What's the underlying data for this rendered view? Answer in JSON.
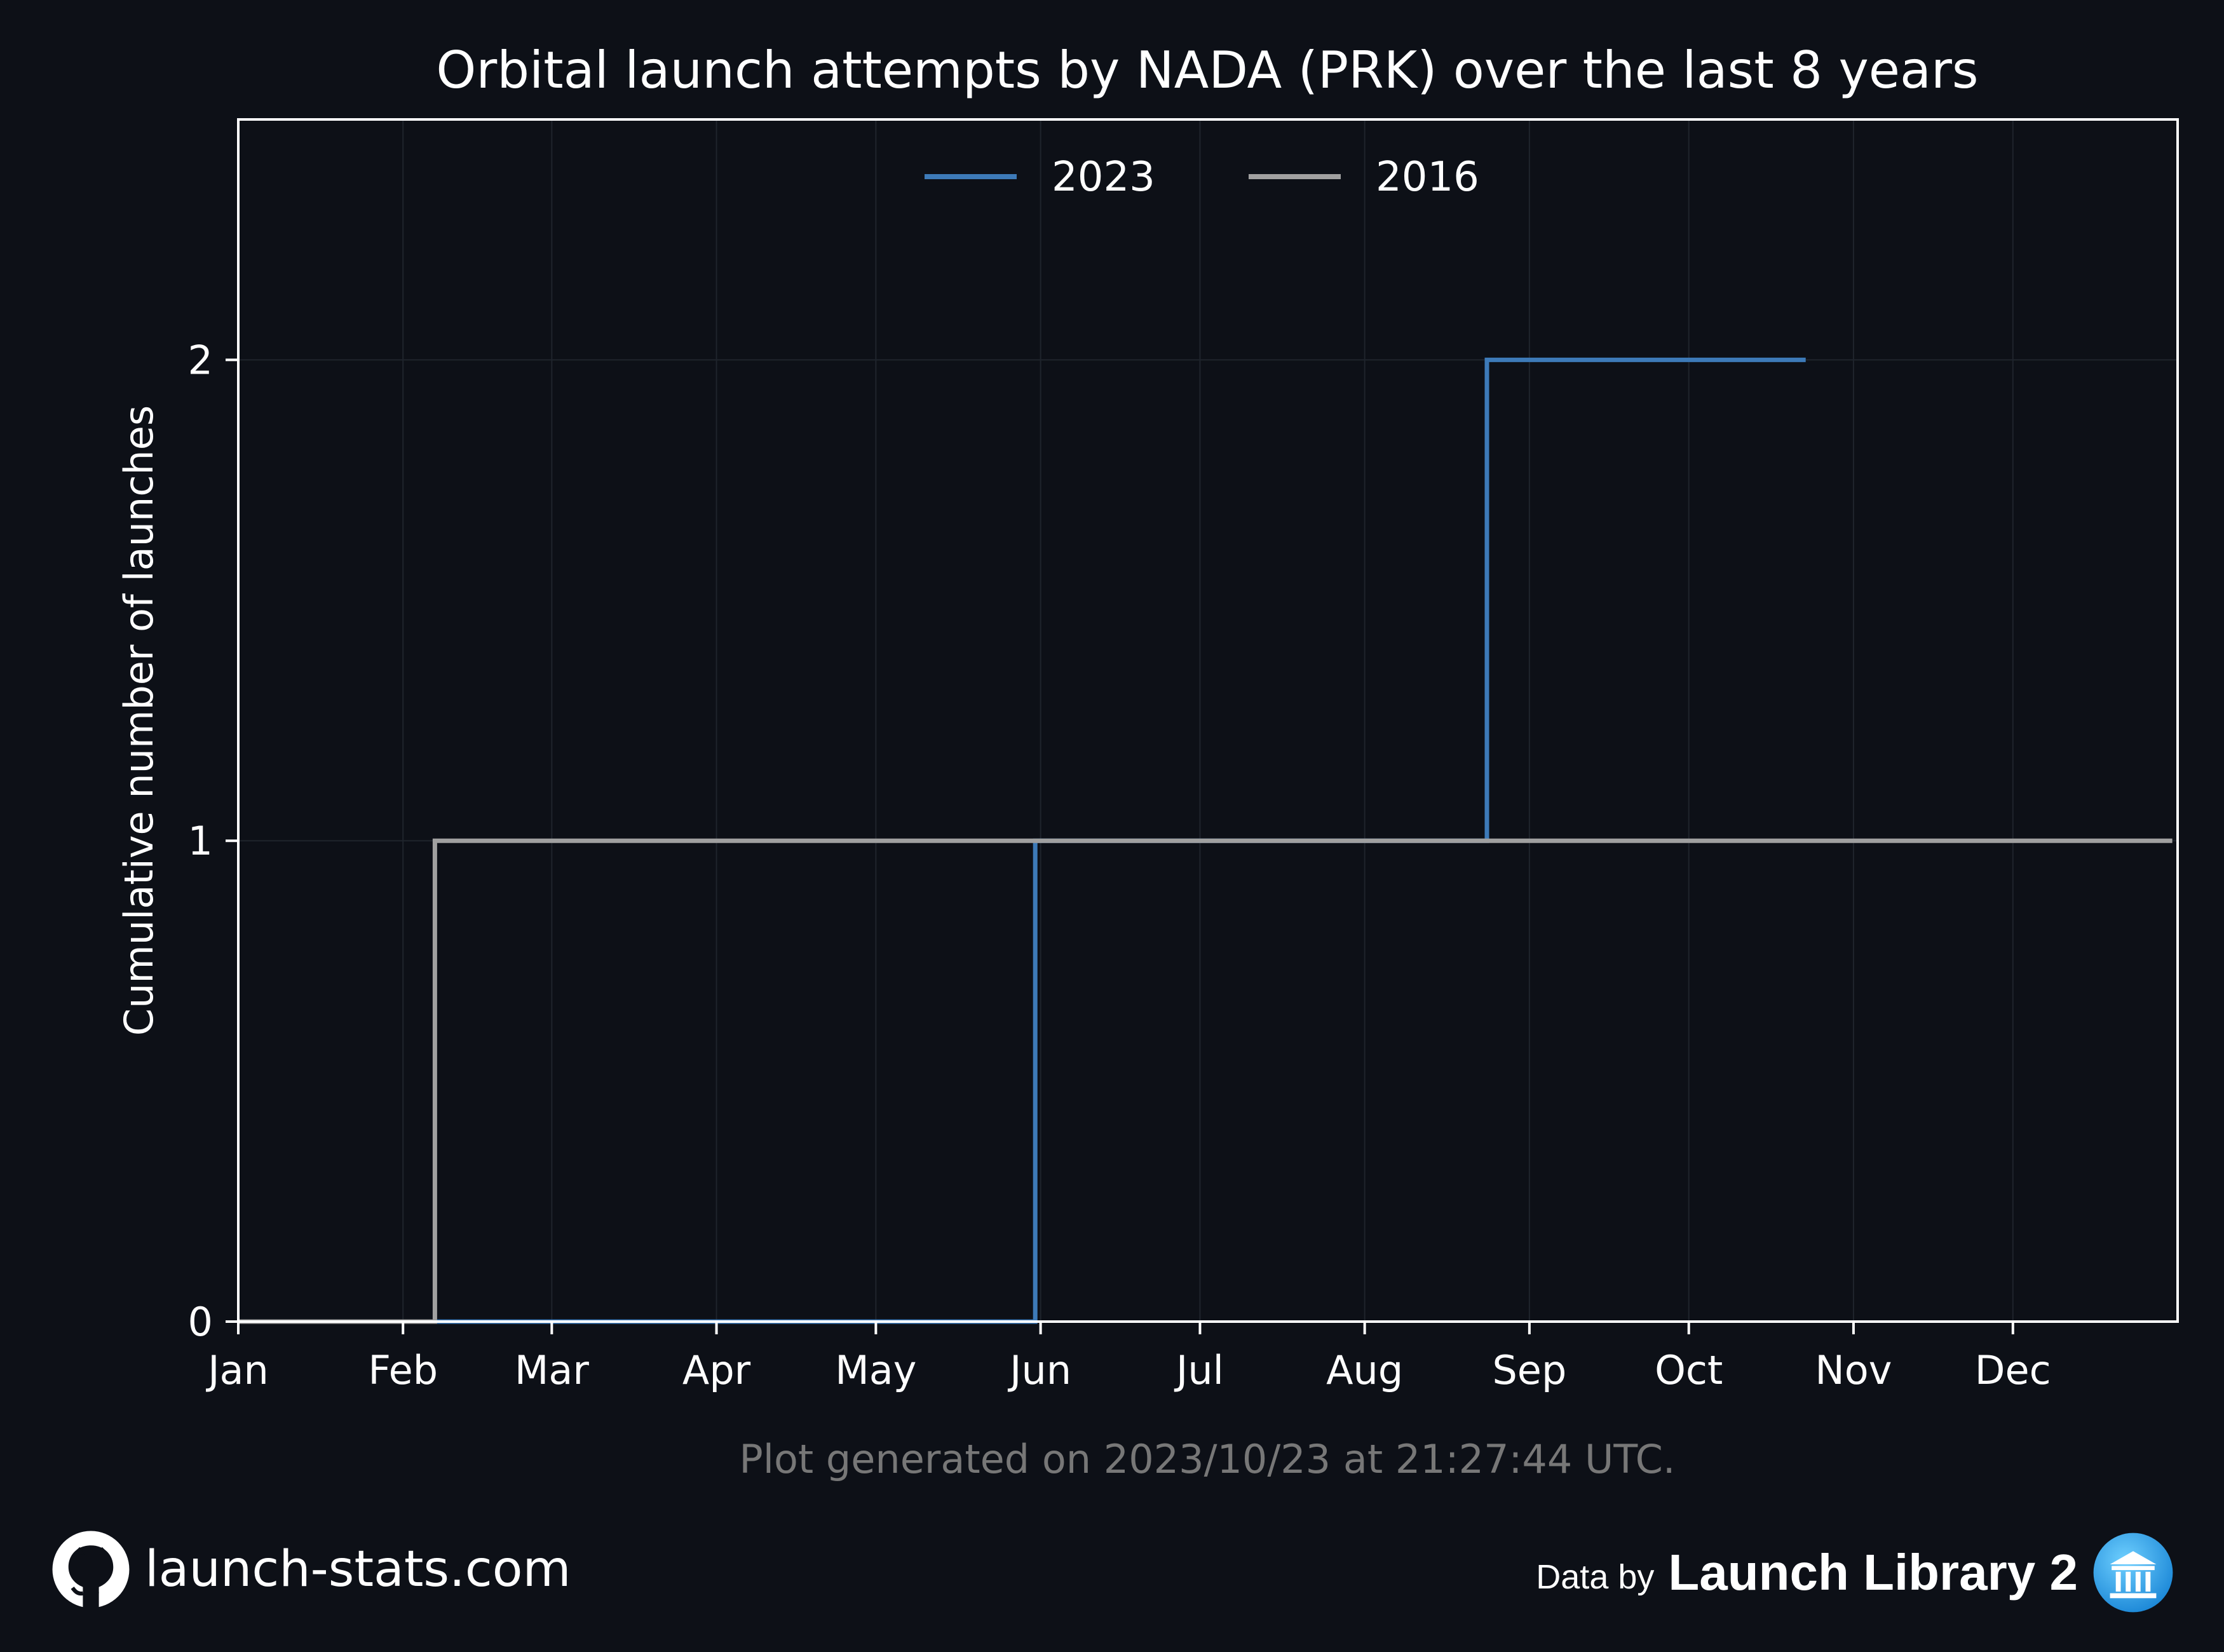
{
  "chart_data": {
    "type": "line",
    "step": "post",
    "title": "Orbital launch attempts by NADA (PRK) over the last 8 years",
    "xlabel": "",
    "ylabel": "Cumulative number of launches",
    "x_tick_labels": [
      "Jan",
      "Feb",
      "Mar",
      "Apr",
      "May",
      "Jun",
      "Jul",
      "Aug",
      "Sep",
      "Oct",
      "Nov",
      "Dec"
    ],
    "xlim": [
      "Jan 1",
      "Dec 31"
    ],
    "ylim": [
      0,
      2.5
    ],
    "y_ticks": [
      0,
      1,
      2
    ],
    "grid": true,
    "legend": "top-center",
    "series": [
      {
        "name": "2023",
        "color": "#3d7ab8",
        "points": [
          [
            "Jan 1",
            0
          ],
          [
            "May 31",
            0
          ],
          [
            "May 31",
            1
          ],
          [
            "Aug 24",
            1
          ],
          [
            "Aug 24",
            2
          ],
          [
            "Oct 23",
            2
          ]
        ]
      },
      {
        "name": "2016",
        "color": "#a0a0a0",
        "points": [
          [
            "Jan 1",
            0
          ],
          [
            "Feb 7",
            0
          ],
          [
            "Feb 7",
            1
          ],
          [
            "Dec 31",
            1
          ]
        ]
      }
    ],
    "footnote": "Plot generated on 2023/10/23 at 21:27:44 UTC."
  },
  "footer": {
    "site": "launch-stats.com",
    "data_by": "Data by",
    "source": "Launch Library 2",
    "github_icon": "github-icon",
    "ll2_icon": "launch-library-icon"
  },
  "colors": {
    "background": "#0d1017",
    "text": "#ffffff",
    "grid": "#1f242c",
    "footnote": "#777777"
  }
}
